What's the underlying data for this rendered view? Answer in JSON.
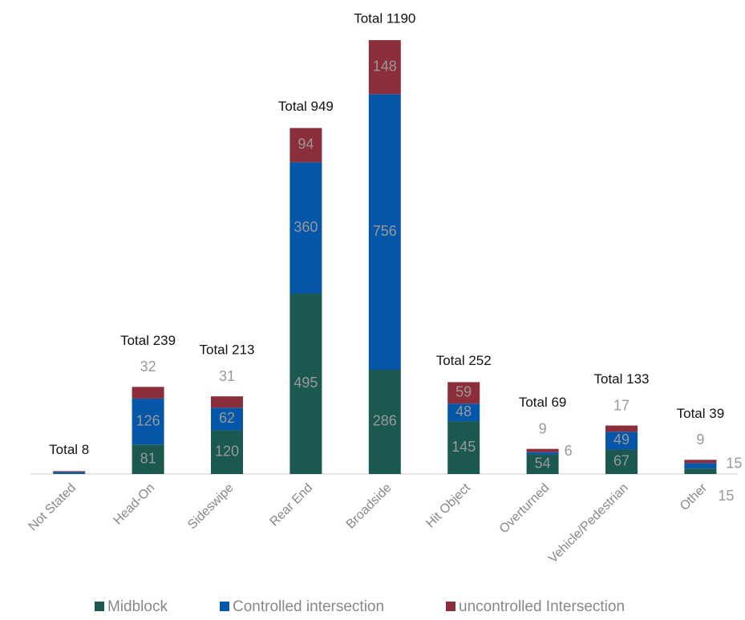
{
  "chart_data": {
    "type": "stacked_bar",
    "categories": [
      "Not Stated",
      "Head-On",
      "Sideswipe",
      "Rear End",
      "Broadside",
      "Hit Object",
      "Overturned",
      "Vehicle/Pedestrian",
      "Other"
    ],
    "series": [
      {
        "name": "Midblock",
        "color": "#1b5850",
        "values": [
          2,
          81,
          120,
          495,
          286,
          145,
          54,
          67,
          15
        ]
      },
      {
        "name": "Controlled intersection",
        "color": "#0356a8",
        "values": [
          4,
          126,
          62,
          360,
          756,
          48,
          6,
          49,
          15
        ]
      },
      {
        "name": "uncontrolled Intersection",
        "color": "#8b2d3a",
        "values": [
          2,
          32,
          31,
          94,
          148,
          59,
          9,
          17,
          9
        ]
      }
    ],
    "totals": [
      8,
      239,
      213,
      949,
      1190,
      252,
      69,
      133,
      39
    ],
    "total_labels": [
      "Total 8",
      "Total 239",
      "Total 213",
      "Total 949",
      "Total 1190",
      "Total 252",
      "Total 69",
      "Total 133",
      "Total 39"
    ],
    "ylim": [
      0,
      1200
    ],
    "legend": "bottom"
  }
}
